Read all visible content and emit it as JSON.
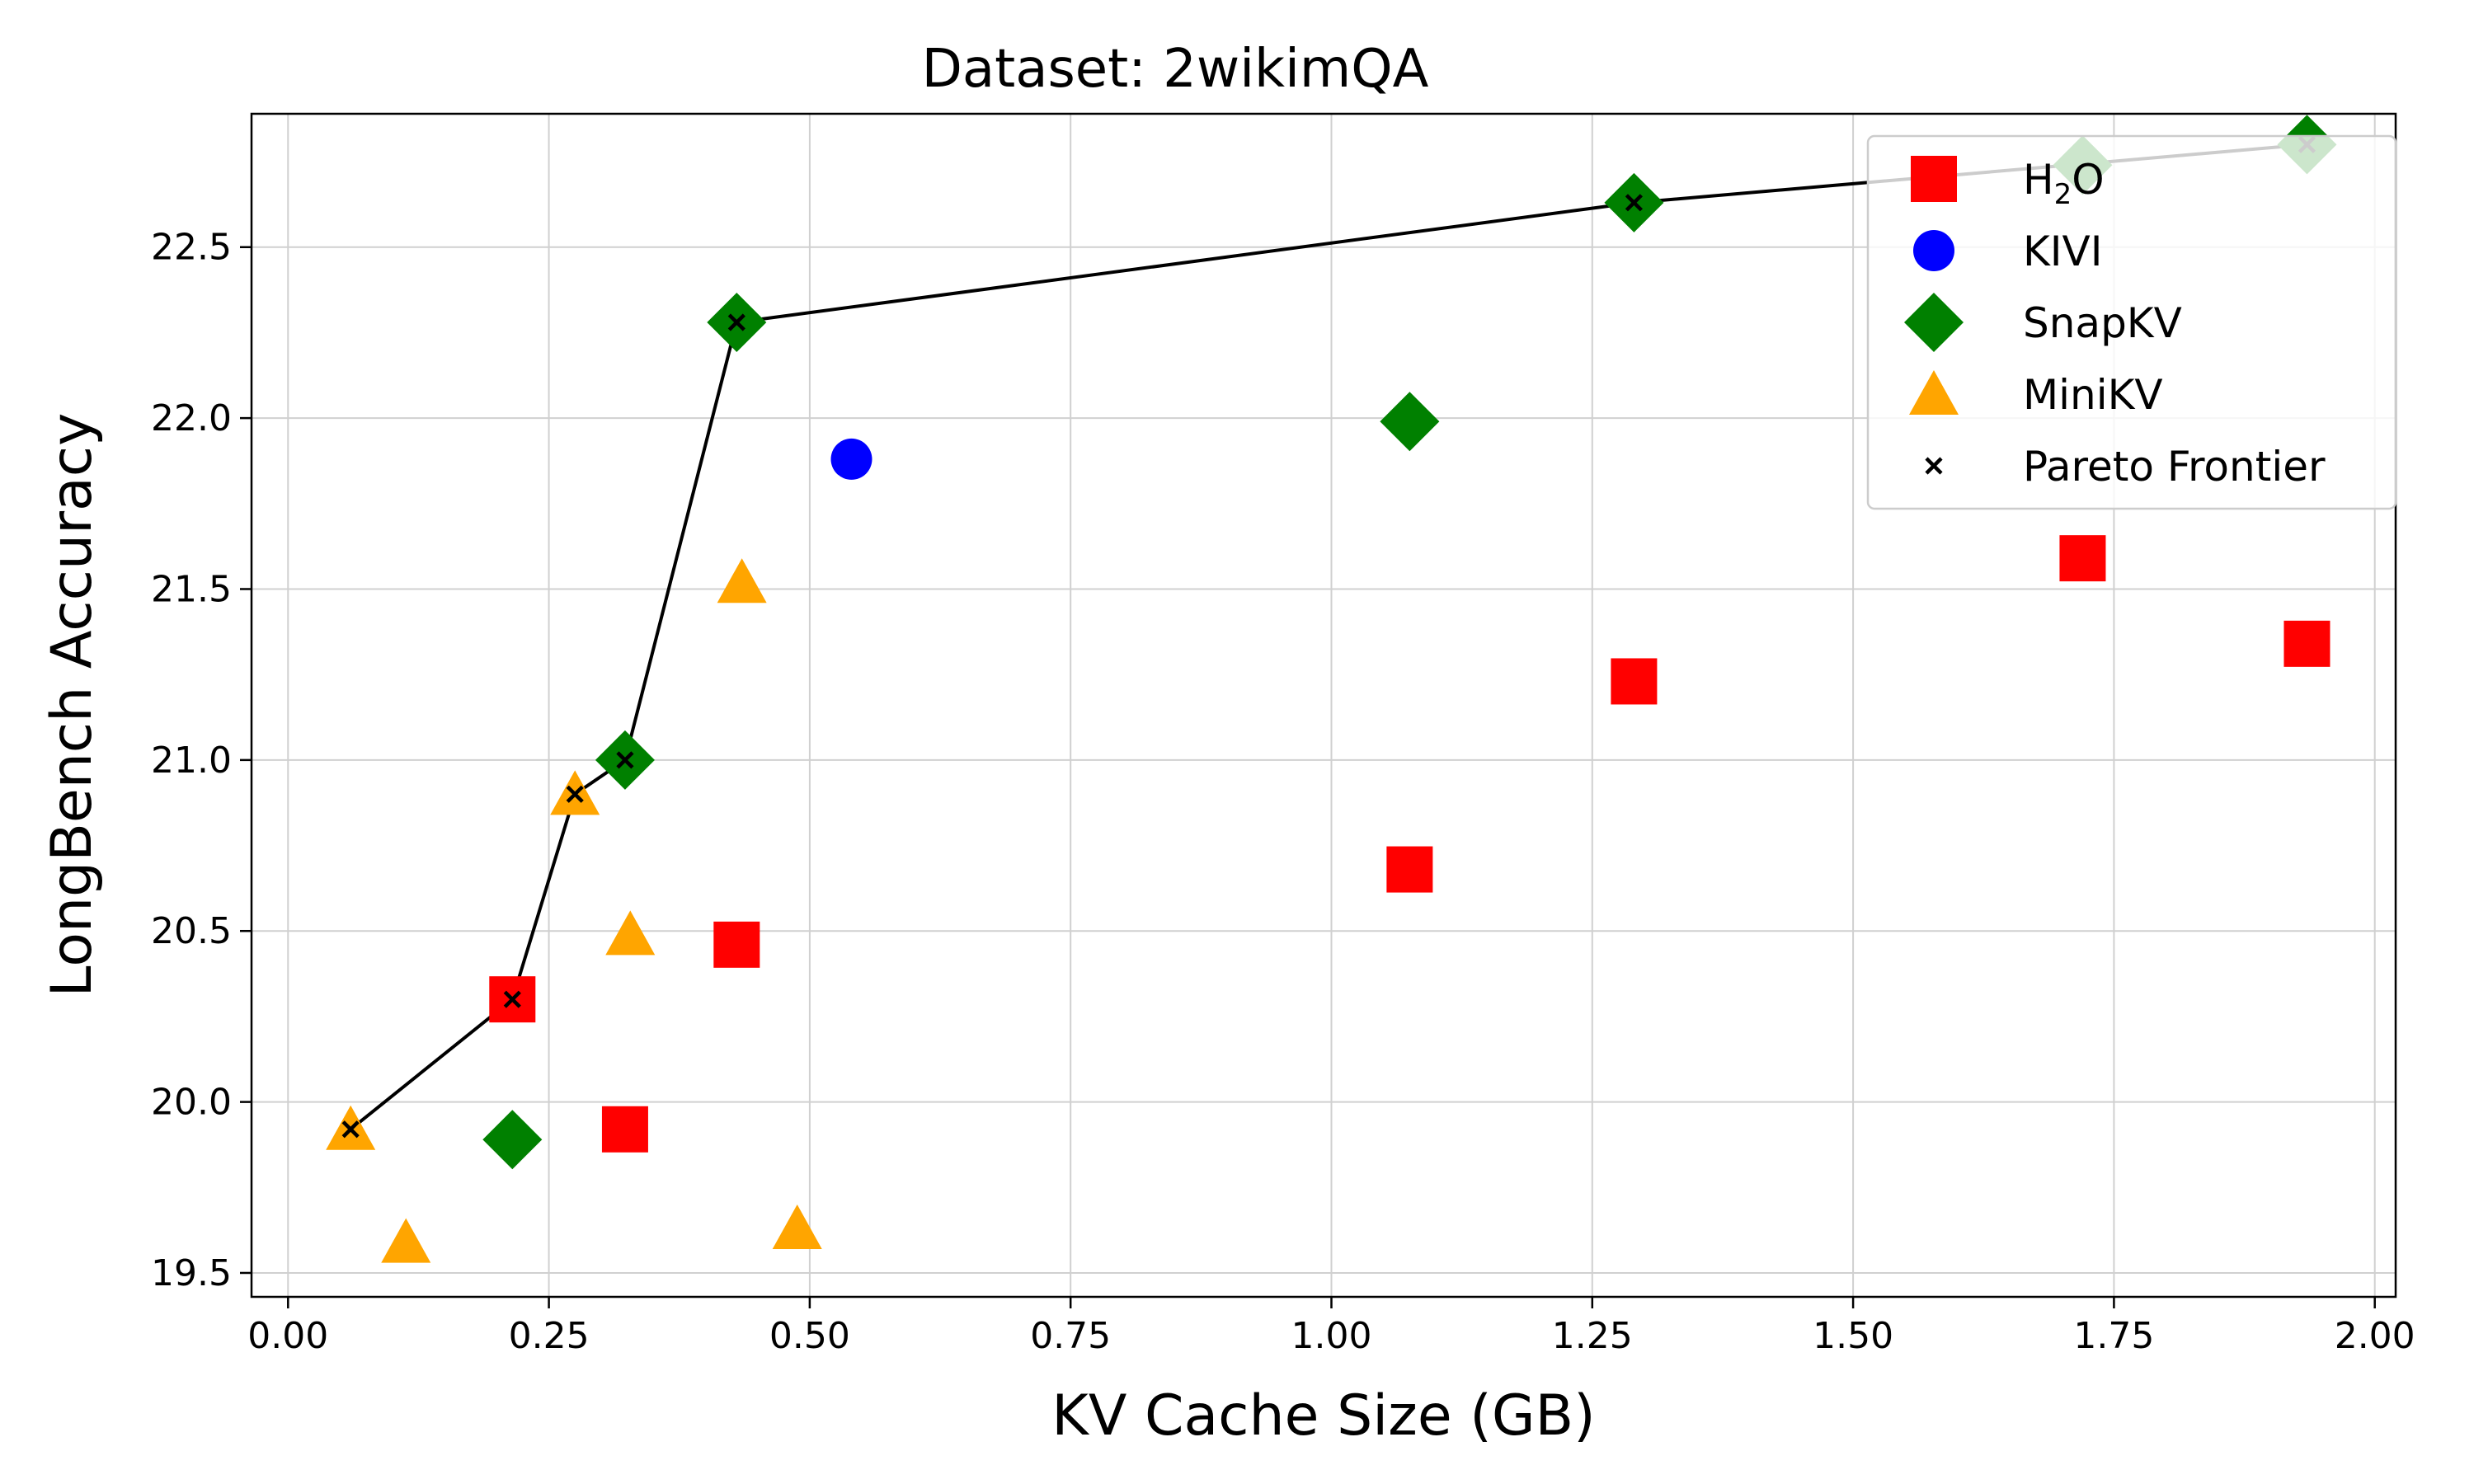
{
  "chart_data": {
    "type": "scatter",
    "title": "Dataset: 2wikimQA",
    "xlabel": "KV Cache Size (GB)",
    "ylabel": "LongBench Accuracy",
    "xlim": [
      -0.035,
      2.02
    ],
    "ylim": [
      19.43,
      22.89
    ],
    "xticks": [
      0.0,
      0.25,
      0.5,
      0.75,
      1.0,
      1.25,
      1.5,
      1.75,
      2.0
    ],
    "xtick_labels": [
      "0.00",
      "0.25",
      "0.50",
      "0.75",
      "1.00",
      "1.25",
      "1.50",
      "1.75",
      "2.00"
    ],
    "yticks": [
      19.5,
      20.0,
      20.5,
      21.0,
      21.5,
      22.0,
      22.5
    ],
    "ytick_labels": [
      "19.5",
      "20.0",
      "20.5",
      "21.0",
      "21.5",
      "22.0",
      "22.5"
    ],
    "grid": true,
    "legend_position": "top-right",
    "legend": [
      {
        "name": "H",
        "sub": "2",
        "suffix": "O",
        "marker": "square",
        "color": "#ff0000"
      },
      {
        "name": "KIVI",
        "sub": "",
        "suffix": "",
        "marker": "circle",
        "color": "#0000ff"
      },
      {
        "name": "SnapKV",
        "sub": "",
        "suffix": "",
        "marker": "diamond",
        "color": "#008000"
      },
      {
        "name": "MiniKV",
        "sub": "",
        "suffix": "",
        "marker": "triangle",
        "color": "#ffa500"
      },
      {
        "name": "Pareto Frontier",
        "sub": "",
        "suffix": "",
        "marker": "x",
        "color": "#000000"
      }
    ],
    "series": [
      {
        "name": "H2O",
        "marker": "square",
        "color": "#ff0000",
        "x": [
          0.215,
          0.323,
          0.43,
          1.075,
          1.29,
          1.72,
          1.935
        ],
        "y": [
          20.3,
          19.92,
          20.46,
          20.68,
          21.23,
          21.59,
          21.34
        ]
      },
      {
        "name": "KIVI",
        "marker": "circle",
        "color": "#0000ff",
        "x": [
          0.54
        ],
        "y": [
          21.88
        ]
      },
      {
        "name": "SnapKV",
        "marker": "diamond",
        "color": "#008000",
        "x": [
          0.215,
          0.323,
          0.43,
          1.075,
          1.29,
          1.72,
          1.935
        ],
        "y": [
          19.89,
          21.0,
          22.28,
          21.99,
          22.63,
          22.74,
          22.8
        ]
      },
      {
        "name": "MiniKV",
        "marker": "triangle",
        "color": "#ffa500",
        "x": [
          0.06,
          0.113,
          0.275,
          0.328,
          0.435,
          0.488
        ],
        "y": [
          19.92,
          19.59,
          20.9,
          20.49,
          21.52,
          19.63
        ]
      },
      {
        "name": "Pareto Frontier",
        "marker": "x",
        "color": "#000000",
        "line": true,
        "x": [
          0.06,
          0.215,
          0.275,
          0.323,
          0.43,
          1.29,
          1.935
        ],
        "y": [
          19.92,
          20.3,
          20.9,
          21.0,
          22.28,
          22.63,
          22.8
        ]
      }
    ]
  }
}
